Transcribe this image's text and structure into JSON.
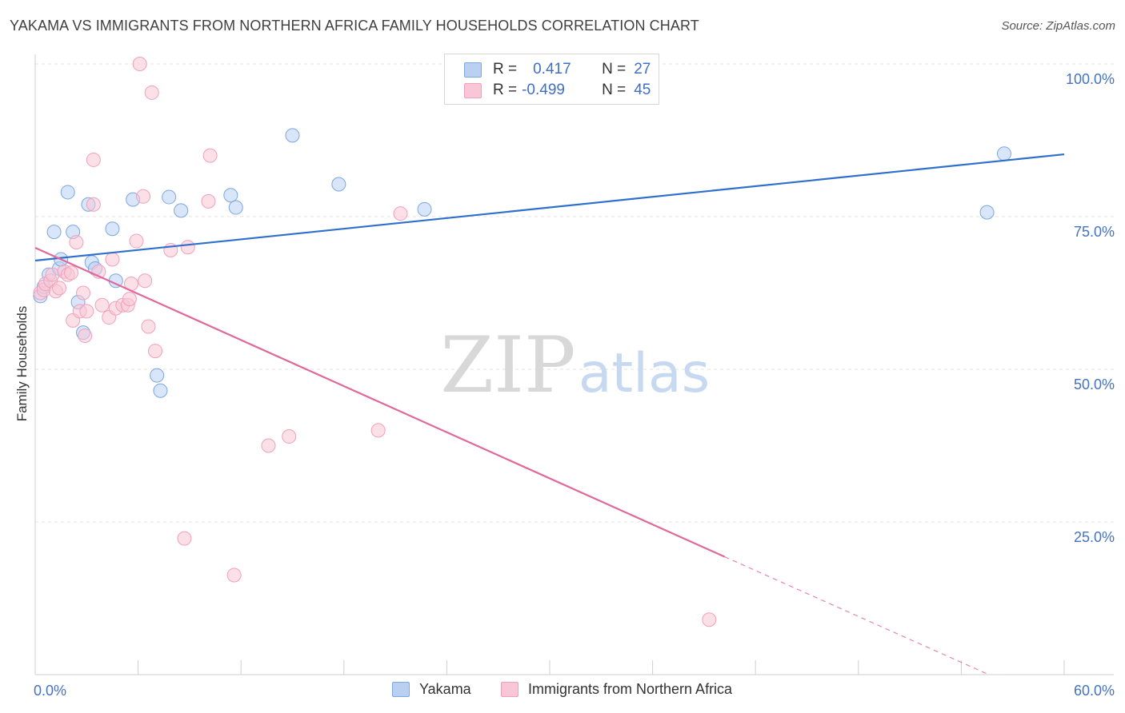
{
  "title": "YAKAMA VS IMMIGRANTS FROM NORTHERN AFRICA FAMILY HOUSEHOLDS CORRELATION CHART",
  "source": "Source: ZipAtlas.com",
  "watermark": {
    "part1": "ZIP",
    "part2": "atlas"
  },
  "chart_data": {
    "type": "scatter",
    "ylabel": "Family Households",
    "xlim": [
      0,
      60
    ],
    "ylim": [
      0,
      100
    ],
    "x_ticks": [
      "0.0%",
      "60.0%"
    ],
    "y_ticks": [
      {
        "value": 100,
        "label": "100.0%"
      },
      {
        "value": 75,
        "label": "75.0%"
      },
      {
        "value": 50,
        "label": "50.0%"
      },
      {
        "value": 25,
        "label": "25.0%"
      }
    ],
    "grid": true,
    "legend": {
      "placement": "top-center",
      "rows": [
        {
          "r_label": "R =",
          "r_value": "0.417",
          "n_label": "N =",
          "n_value": "27"
        },
        {
          "r_label": "R =",
          "r_value": "-0.499",
          "n_label": "N =",
          "n_value": "45"
        }
      ]
    },
    "series": [
      {
        "name": "Yakama",
        "color": "#7da7e0",
        "line_color": "#2f6fcc",
        "trend": {
          "x0": 0,
          "y0": 67.8,
          "x1": 60,
          "y1": 85.2
        },
        "points": [
          [
            0.3,
            62.0
          ],
          [
            0.5,
            63.5
          ],
          [
            0.8,
            65.5
          ],
          [
            1.1,
            72.5
          ],
          [
            1.4,
            66.5
          ],
          [
            1.5,
            68.0
          ],
          [
            1.9,
            79.0
          ],
          [
            2.2,
            72.5
          ],
          [
            2.5,
            61.0
          ],
          [
            2.8,
            56.0
          ],
          [
            3.1,
            77.0
          ],
          [
            3.3,
            67.5
          ],
          [
            3.5,
            66.5
          ],
          [
            4.5,
            73.0
          ],
          [
            4.7,
            64.5
          ],
          [
            5.7,
            77.8
          ],
          [
            7.1,
            49.0
          ],
          [
            7.3,
            46.5
          ],
          [
            7.8,
            78.2
          ],
          [
            8.5,
            76.0
          ],
          [
            11.4,
            78.5
          ],
          [
            11.7,
            76.5
          ],
          [
            15.0,
            88.3
          ],
          [
            17.7,
            80.3
          ],
          [
            22.7,
            76.2
          ],
          [
            55.5,
            75.7
          ],
          [
            56.5,
            85.3
          ]
        ]
      },
      {
        "name": "Immigrants from Northern Africa",
        "color": "#f1a0bc",
        "line_color": "#e0689a",
        "trend": {
          "x0": 0,
          "y0": 69.9,
          "x1": 40.2,
          "y1": 19.3
        },
        "trend_dashed": {
          "x0": 40.2,
          "y0": 19.3,
          "x1": 60,
          "y1": -5.5
        },
        "points": [
          [
            0.3,
            62.5
          ],
          [
            0.5,
            63.0
          ],
          [
            0.6,
            64.0
          ],
          [
            0.9,
            64.5
          ],
          [
            1.0,
            65.5
          ],
          [
            1.2,
            62.8
          ],
          [
            1.4,
            63.3
          ],
          [
            1.7,
            66.0
          ],
          [
            1.9,
            65.5
          ],
          [
            2.1,
            65.8
          ],
          [
            2.2,
            58.0
          ],
          [
            2.4,
            70.8
          ],
          [
            2.6,
            59.5
          ],
          [
            2.8,
            62.5
          ],
          [
            2.9,
            55.5
          ],
          [
            3.0,
            59.5
          ],
          [
            3.4,
            77.0
          ],
          [
            3.4,
            84.3
          ],
          [
            3.7,
            66.0
          ],
          [
            3.9,
            60.5
          ],
          [
            4.3,
            58.5
          ],
          [
            4.5,
            68.0
          ],
          [
            4.7,
            60.0
          ],
          [
            5.1,
            60.5
          ],
          [
            5.4,
            60.5
          ],
          [
            5.5,
            61.5
          ],
          [
            5.6,
            64.0
          ],
          [
            5.9,
            71.0
          ],
          [
            6.1,
            100.0
          ],
          [
            6.3,
            78.3
          ],
          [
            6.4,
            64.5
          ],
          [
            6.6,
            57.0
          ],
          [
            6.8,
            95.3
          ],
          [
            7.0,
            53.0
          ],
          [
            7.9,
            69.5
          ],
          [
            8.7,
            22.3
          ],
          [
            8.9,
            70.0
          ],
          [
            10.1,
            77.5
          ],
          [
            10.2,
            85.0
          ],
          [
            11.6,
            16.3
          ],
          [
            13.6,
            37.5
          ],
          [
            14.8,
            39.0
          ],
          [
            20.0,
            40.0
          ],
          [
            21.3,
            75.5
          ],
          [
            39.3,
            9.0
          ]
        ]
      }
    ]
  }
}
